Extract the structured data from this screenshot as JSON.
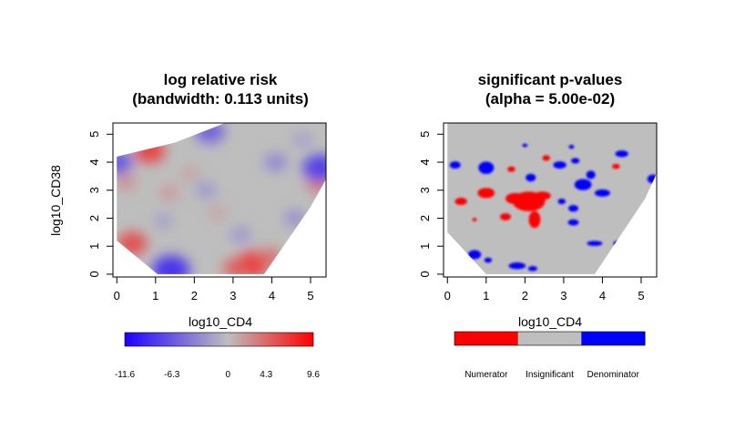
{
  "chart_data": [
    {
      "type": "heatmap",
      "title_line1": "log relative risk",
      "title_line2": "(bandwidth: 0.113 units)",
      "xlabel": "log10_CD4",
      "ylabel": "log10_CD38",
      "xlim": [
        -0.1,
        5.4
      ],
      "ylim": [
        -0.1,
        5.4
      ],
      "x_ticks": [
        "0",
        "1",
        "2",
        "3",
        "4",
        "5"
      ],
      "y_ticks": [
        "0",
        "1",
        "2",
        "3",
        "4",
        "5"
      ],
      "domain_polygon": [
        [
          1.05,
          0.0
        ],
        [
          3.8,
          0.0
        ],
        [
          5.0,
          2.4
        ],
        [
          5.4,
          3.4
        ],
        [
          5.4,
          5.4
        ],
        [
          2.8,
          5.4
        ],
        [
          1.5,
          4.7
        ],
        [
          0.0,
          4.2
        ],
        [
          0.0,
          1.2
        ]
      ],
      "colorbar": {
        "range": [
          -11.6,
          9.6
        ],
        "ticks": [
          -11.6,
          -6.3,
          0,
          4.3,
          9.6
        ],
        "tick_labels": [
          "-11.6",
          "-6.3",
          "0",
          "4.3",
          "9.6"
        ],
        "colors": {
          "low": "#1f00ff",
          "mid": "#bebebe",
          "high": "#ff0000"
        }
      },
      "features": [
        {
          "x": 3.5,
          "y": 0.35,
          "value": 7.5
        },
        {
          "x": 3.1,
          "y": 0.2,
          "value": 5.0
        },
        {
          "x": 3.95,
          "y": 0.6,
          "value": 4.0
        },
        {
          "x": 0.4,
          "y": 1.1,
          "value": 6.0
        },
        {
          "x": 0.85,
          "y": 4.4,
          "value": 6.5
        },
        {
          "x": 5.2,
          "y": 3.2,
          "value": 3.5
        },
        {
          "x": 0.25,
          "y": 3.3,
          "value": 2.5
        },
        {
          "x": 1.35,
          "y": 2.9,
          "value": 2.0
        },
        {
          "x": 2.6,
          "y": 2.2,
          "value": 1.5
        },
        {
          "x": 1.9,
          "y": 3.6,
          "value": 1.5
        },
        {
          "x": 1.4,
          "y": 0.15,
          "value": -9.0
        },
        {
          "x": 0.0,
          "y": 4.0,
          "value": -6.5
        },
        {
          "x": 2.4,
          "y": 5.1,
          "value": -6.0
        },
        {
          "x": 5.25,
          "y": 3.8,
          "value": -8.0
        },
        {
          "x": 4.1,
          "y": 4.0,
          "value": -3.5
        },
        {
          "x": 2.3,
          "y": 3.0,
          "value": -2.5
        },
        {
          "x": 4.6,
          "y": 2.0,
          "value": -3.0
        },
        {
          "x": 1.2,
          "y": 1.9,
          "value": -2.0
        },
        {
          "x": 3.2,
          "y": 1.4,
          "value": -2.5
        },
        {
          "x": 4.8,
          "y": 4.8,
          "value": -2.0
        }
      ]
    },
    {
      "type": "heatmap",
      "title_line1": "significant p-values",
      "title_line2": "(alpha = 5.00e-02)",
      "xlabel": "log10_CD4",
      "ylabel": "",
      "xlim": [
        -0.1,
        5.4
      ],
      "ylim": [
        -0.1,
        5.4
      ],
      "x_ticks": [
        "0",
        "1",
        "2",
        "3",
        "4",
        "5"
      ],
      "y_ticks": [
        "0",
        "1",
        "2",
        "3",
        "4",
        "5"
      ],
      "domain_polygon": [
        [
          1.0,
          0.0
        ],
        [
          3.8,
          0.0
        ],
        [
          5.1,
          2.7
        ],
        [
          5.4,
          3.6
        ],
        [
          5.4,
          5.4
        ],
        [
          0.0,
          5.4
        ],
        [
          0.0,
          1.5
        ]
      ],
      "categories": [
        "Numerator",
        "Insignificant",
        "Denominator"
      ],
      "category_colors": [
        "#ff0000",
        "#bebebe",
        "#0000ff"
      ],
      "regions": [
        {
          "class": "Numerator",
          "x": 2.1,
          "y": 2.6,
          "rx": 0.42,
          "ry": 0.35
        },
        {
          "class": "Numerator",
          "x": 1.75,
          "y": 2.7,
          "rx": 0.25,
          "ry": 0.2
        },
        {
          "class": "Numerator",
          "x": 2.45,
          "y": 2.8,
          "rx": 0.22,
          "ry": 0.15
        },
        {
          "class": "Numerator",
          "x": 2.25,
          "y": 1.95,
          "rx": 0.15,
          "ry": 0.3
        },
        {
          "class": "Numerator",
          "x": 1.0,
          "y": 2.9,
          "rx": 0.22,
          "ry": 0.18
        },
        {
          "class": "Numerator",
          "x": 1.5,
          "y": 2.05,
          "rx": 0.14,
          "ry": 0.13
        },
        {
          "class": "Numerator",
          "x": 0.35,
          "y": 2.6,
          "rx": 0.16,
          "ry": 0.13
        },
        {
          "class": "Numerator",
          "x": 1.65,
          "y": 3.75,
          "rx": 0.1,
          "ry": 0.1
        },
        {
          "class": "Numerator",
          "x": 2.55,
          "y": 4.15,
          "rx": 0.1,
          "ry": 0.1
        },
        {
          "class": "Numerator",
          "x": 4.35,
          "y": 3.85,
          "rx": 0.1,
          "ry": 0.09
        },
        {
          "class": "Numerator",
          "x": 0.7,
          "y": 1.95,
          "rx": 0.06,
          "ry": 0.06
        },
        {
          "class": "Denominator",
          "x": 0.2,
          "y": 3.9,
          "rx": 0.14,
          "ry": 0.13
        },
        {
          "class": "Denominator",
          "x": 1.0,
          "y": 3.8,
          "rx": 0.2,
          "ry": 0.22
        },
        {
          "class": "Denominator",
          "x": 2.15,
          "y": 3.45,
          "rx": 0.13,
          "ry": 0.14
        },
        {
          "class": "Denominator",
          "x": 2.9,
          "y": 3.9,
          "rx": 0.17,
          "ry": 0.13
        },
        {
          "class": "Denominator",
          "x": 3.3,
          "y": 4.05,
          "rx": 0.11,
          "ry": 0.1
        },
        {
          "class": "Denominator",
          "x": 3.5,
          "y": 3.2,
          "rx": 0.22,
          "ry": 0.2
        },
        {
          "class": "Denominator",
          "x": 3.7,
          "y": 3.55,
          "rx": 0.12,
          "ry": 0.15
        },
        {
          "class": "Denominator",
          "x": 4.0,
          "y": 2.9,
          "rx": 0.2,
          "ry": 0.13
        },
        {
          "class": "Denominator",
          "x": 3.25,
          "y": 2.35,
          "rx": 0.13,
          "ry": 0.12
        },
        {
          "class": "Denominator",
          "x": 3.25,
          "y": 1.85,
          "rx": 0.14,
          "ry": 0.11
        },
        {
          "class": "Denominator",
          "x": 2.95,
          "y": 2.6,
          "rx": 0.1,
          "ry": 0.1
        },
        {
          "class": "Denominator",
          "x": 4.5,
          "y": 4.3,
          "rx": 0.17,
          "ry": 0.12
        },
        {
          "class": "Denominator",
          "x": 3.2,
          "y": 4.55,
          "rx": 0.07,
          "ry": 0.07
        },
        {
          "class": "Denominator",
          "x": 2.0,
          "y": 4.6,
          "rx": 0.07,
          "ry": 0.06
        },
        {
          "class": "Denominator",
          "x": 3.8,
          "y": 1.1,
          "rx": 0.2,
          "ry": 0.09
        },
        {
          "class": "Denominator",
          "x": 4.4,
          "y": 1.1,
          "rx": 0.12,
          "ry": 0.09
        },
        {
          "class": "Denominator",
          "x": 0.7,
          "y": 0.7,
          "rx": 0.17,
          "ry": 0.16
        },
        {
          "class": "Denominator",
          "x": 1.05,
          "y": 0.5,
          "rx": 0.1,
          "ry": 0.09
        },
        {
          "class": "Denominator",
          "x": 1.8,
          "y": 0.3,
          "rx": 0.22,
          "ry": 0.12
        },
        {
          "class": "Denominator",
          "x": 2.2,
          "y": 0.2,
          "rx": 0.12,
          "ry": 0.09
        },
        {
          "class": "Denominator",
          "x": 5.3,
          "y": 3.4,
          "rx": 0.14,
          "ry": 0.16
        }
      ]
    }
  ]
}
